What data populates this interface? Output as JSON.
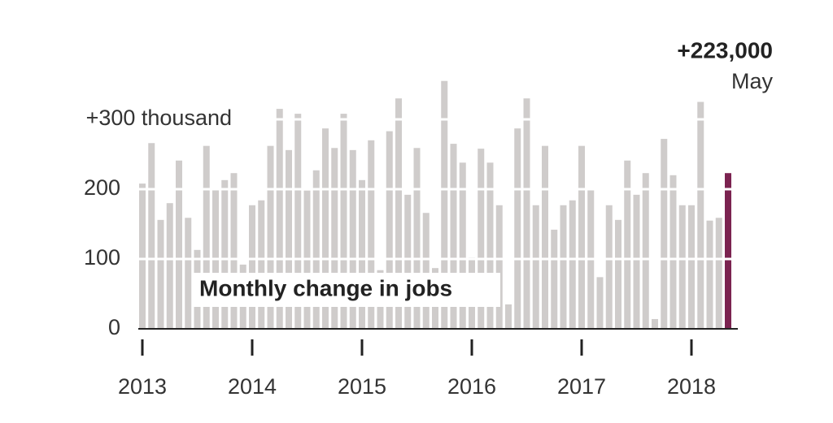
{
  "chart_data": {
    "type": "bar",
    "title": "Monthly change in jobs",
    "annotation": {
      "label": "+223,000",
      "month": "May"
    },
    "categories": [
      "2013",
      null,
      null,
      null,
      null,
      null,
      null,
      null,
      null,
      null,
      null,
      null,
      "2014",
      null,
      null,
      null,
      null,
      null,
      null,
      null,
      null,
      null,
      null,
      null,
      "2015",
      null,
      null,
      null,
      null,
      null,
      null,
      null,
      null,
      null,
      null,
      null,
      "2016",
      null,
      null,
      null,
      null,
      null,
      null,
      null,
      null,
      null,
      null,
      null,
      "2017",
      null,
      null,
      null,
      null,
      null,
      null,
      null,
      null,
      null,
      null,
      null,
      "2018",
      null,
      null,
      null,
      null
    ],
    "values": [
      208,
      266,
      156,
      180,
      241,
      159,
      113,
      262,
      200,
      213,
      223,
      92,
      177,
      184,
      262,
      315,
      256,
      308,
      198,
      227,
      287,
      259,
      308,
      256,
      213,
      270,
      84,
      283,
      330,
      192,
      259,
      166,
      87,
      355,
      265,
      238,
      102,
      258,
      238,
      177,
      35,
      287,
      330,
      177,
      262,
      142,
      177,
      184,
      262,
      200,
      74,
      177,
      156,
      241,
      192,
      223,
      14,
      272,
      220,
      177,
      177,
      325,
      155,
      159,
      223
    ],
    "color": "#cfcccb",
    "highlight_color": "#7b2350",
    "ylim": [
      0,
      360
    ],
    "yticks": [
      0,
      100,
      200,
      {
        "value": 300,
        "label": "+300 thousand"
      }
    ],
    "grid": true
  }
}
